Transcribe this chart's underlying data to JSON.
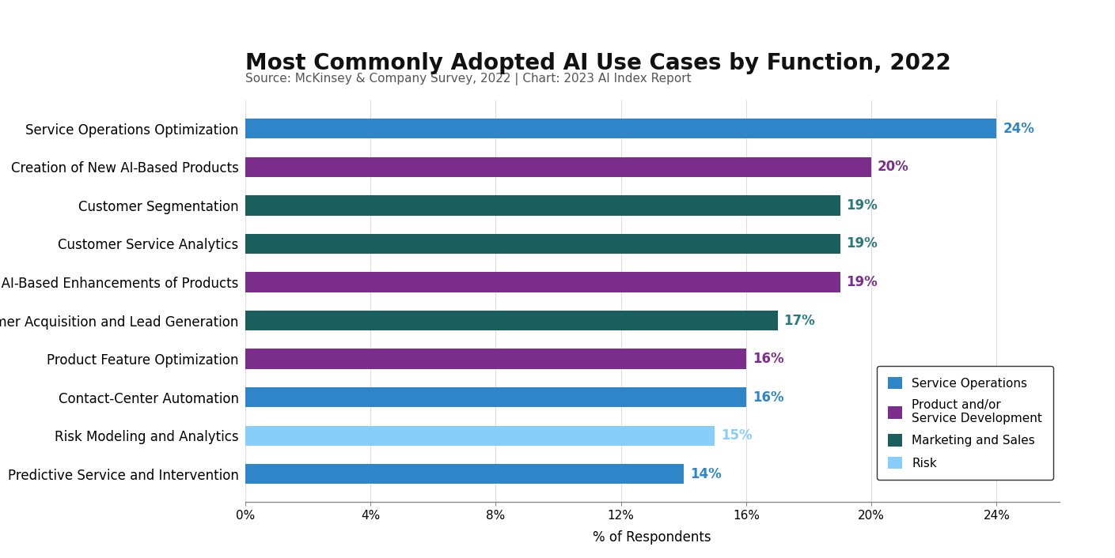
{
  "title": "Most Commonly Adopted AI Use Cases by Function, 2022",
  "subtitle": "Source: McKinsey & Company Survey, 2022 | Chart: 2023 AI Index Report",
  "xlabel": "% of Respondents",
  "categories": [
    "Service Operations Optimization",
    "Creation of New AI-Based Products",
    "Customer Segmentation",
    "Customer Service Analytics",
    "New AI-Based Enhancements of Products",
    "Customer Acquisition and Lead Generation",
    "Product Feature Optimization",
    "Contact-Center Automation",
    "Risk Modeling and Analytics",
    "Predictive Service and Intervention"
  ],
  "values": [
    24,
    20,
    19,
    19,
    19,
    17,
    16,
    16,
    15,
    14
  ],
  "bar_colors": [
    "#2E86C8",
    "#7B2D8B",
    "#1B5E5E",
    "#1B5E5E",
    "#7B2D8B",
    "#1B5E5E",
    "#7B2D8B",
    "#2E86C8",
    "#87CEFA",
    "#2E86C8"
  ],
  "label_colors": [
    "#2E86C8",
    "#7B2D8B",
    "#2A7A7A",
    "#2A7A7A",
    "#7B2D8B",
    "#2A7A7A",
    "#7B2D8B",
    "#2E86C8",
    "#87CEFA",
    "#2E86C8"
  ],
  "legend_labels": [
    "Service Operations",
    "Product and/or\nService Development",
    "Marketing and Sales",
    "Risk"
  ],
  "legend_colors": [
    "#2E86C8",
    "#7B2D8B",
    "#1B5E5E",
    "#87CEFA"
  ],
  "xlim": [
    0,
    26
  ],
  "xticks": [
    0,
    4,
    8,
    12,
    16,
    20,
    24
  ],
  "background_color": "#FFFFFF",
  "title_fontsize": 20,
  "subtitle_fontsize": 11,
  "bar_height": 0.52
}
